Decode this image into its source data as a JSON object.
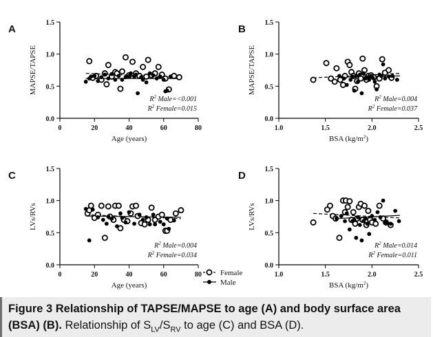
{
  "figure": {
    "legend": [
      {
        "label": "Female",
        "marker": "open-circle",
        "line": "dashed"
      },
      {
        "label": "Male",
        "marker": "filled-circle",
        "line": "solid"
      }
    ]
  },
  "caption": {
    "title": "Figure 3 Relationship of TAPSE/MAPSE to age (A) and body surface area (BSA) (B).",
    "part1": " Relationship of S",
    "sub1": "LV",
    "part2": "/S",
    "sub2": "RV",
    "part3": " to age (C) and BSA (D)."
  },
  "chart_data": [
    {
      "panel": "A",
      "type": "scatter",
      "xlabel": "Age (years)",
      "ylabel": "MAPSE/TAPSE",
      "xlim": [
        0,
        80
      ],
      "ylim": [
        0,
        1.5
      ],
      "xticks": [
        0,
        20,
        40,
        60,
        80
      ],
      "yticks": [
        0.0,
        0.5,
        1.0,
        1.5
      ],
      "annotations": [
        "R² Male=<0.001",
        "R² Female=0.015"
      ],
      "series": [
        {
          "name": "Female",
          "marker": "open",
          "points": [
            [
              17,
              0.89
            ],
            [
              19,
              0.63
            ],
            [
              21,
              0.66
            ],
            [
              24,
              0.6
            ],
            [
              26,
              0.7
            ],
            [
              27,
              0.53
            ],
            [
              28,
              0.83
            ],
            [
              30,
              0.65
            ],
            [
              32,
              0.72
            ],
            [
              33,
              0.7
            ],
            [
              35,
              0.46
            ],
            [
              36,
              0.73
            ],
            [
              38,
              0.95
            ],
            [
              40,
              0.67
            ],
            [
              42,
              0.88
            ],
            [
              44,
              0.7
            ],
            [
              46,
              0.66
            ],
            [
              48,
              0.8
            ],
            [
              50,
              0.65
            ],
            [
              51,
              0.91
            ],
            [
              53,
              0.67
            ],
            [
              55,
              0.7
            ],
            [
              57,
              0.8
            ],
            [
              59,
              0.68
            ],
            [
              61,
              0.62
            ],
            [
              63,
              0.45
            ],
            [
              66,
              0.66
            ],
            [
              69,
              0.64
            ]
          ],
          "fit": [
            [
              15,
              0.7
            ],
            [
              70,
              0.64
            ]
          ]
        },
        {
          "name": "Male",
          "marker": "filled",
          "points": [
            [
              15,
              0.57
            ],
            [
              17,
              0.62
            ],
            [
              18,
              0.65
            ],
            [
              20,
              0.66
            ],
            [
              22,
              0.58
            ],
            [
              24,
              0.64
            ],
            [
              26,
              0.68
            ],
            [
              28,
              0.62
            ],
            [
              30,
              0.69
            ],
            [
              32,
              0.6
            ],
            [
              34,
              0.66
            ],
            [
              36,
              0.6
            ],
            [
              38,
              0.64
            ],
            [
              40,
              0.66
            ],
            [
              41,
              0.7
            ],
            [
              43,
              0.65
            ],
            [
              44,
              0.68
            ],
            [
              45,
              0.39
            ],
            [
              47,
              0.64
            ],
            [
              48,
              0.6
            ],
            [
              50,
              0.56
            ],
            [
              52,
              0.7
            ],
            [
              54,
              0.67
            ],
            [
              56,
              0.62
            ],
            [
              58,
              0.65
            ],
            [
              60,
              0.6
            ],
            [
              61,
              0.42
            ],
            [
              62,
              0.43
            ],
            [
              64,
              0.65
            ]
          ],
          "fit": [
            [
              15,
              0.62
            ],
            [
              70,
              0.62
            ]
          ]
        }
      ]
    },
    {
      "panel": "B",
      "type": "scatter",
      "xlabel": "BSA (kg/m²)",
      "ylabel": "MAPSE/TAPSE",
      "xlim": [
        1.0,
        2.5
      ],
      "ylim": [
        0,
        1.5
      ],
      "xticks": [
        1.0,
        1.5,
        2.0,
        2.5
      ],
      "yticks": [
        0.0,
        0.5,
        1.0,
        1.5
      ],
      "annotations": [
        "R² Male=0.004",
        "R² Female=0.037"
      ],
      "series": [
        {
          "name": "Female",
          "marker": "open",
          "points": [
            [
              1.37,
              0.6
            ],
            [
              1.51,
              0.86
            ],
            [
              1.56,
              0.62
            ],
            [
              1.6,
              0.57
            ],
            [
              1.62,
              0.78
            ],
            [
              1.66,
              0.6
            ],
            [
              1.69,
              0.52
            ],
            [
              1.71,
              0.66
            ],
            [
              1.74,
              0.88
            ],
            [
              1.76,
              0.83
            ],
            [
              1.78,
              0.72
            ],
            [
              1.8,
              0.66
            ],
            [
              1.82,
              0.46
            ],
            [
              1.84,
              0.58
            ],
            [
              1.86,
              0.7
            ],
            [
              1.88,
              0.62
            ],
            [
              1.9,
              0.93
            ],
            [
              1.92,
              0.75
            ],
            [
              1.94,
              0.6
            ],
            [
              1.96,
              0.66
            ],
            [
              1.99,
              0.67
            ],
            [
              2.02,
              0.64
            ],
            [
              2.05,
              0.5
            ],
            [
              2.08,
              0.62
            ],
            [
              2.11,
              0.92
            ],
            [
              2.14,
              0.71
            ],
            [
              2.18,
              0.75
            ],
            [
              2.21,
              0.63
            ]
          ],
          "fit": [
            [
              1.37,
              0.63
            ],
            [
              2.3,
              0.7
            ]
          ]
        },
        {
          "name": "Male",
          "marker": "filled",
          "points": [
            [
              1.65,
              0.66
            ],
            [
              1.7,
              0.62
            ],
            [
              1.73,
              0.52
            ],
            [
              1.77,
              0.6
            ],
            [
              1.79,
              0.65
            ],
            [
              1.81,
              0.43
            ],
            [
              1.83,
              0.66
            ],
            [
              1.85,
              0.57
            ],
            [
              1.87,
              0.68
            ],
            [
              1.89,
              0.39
            ],
            [
              1.91,
              0.7
            ],
            [
              1.93,
              0.62
            ],
            [
              1.95,
              0.64
            ],
            [
              1.97,
              0.6
            ],
            [
              1.99,
              0.66
            ],
            [
              2.01,
              0.63
            ],
            [
              2.03,
              0.57
            ],
            [
              2.05,
              0.45
            ],
            [
              2.08,
              0.68
            ],
            [
              2.1,
              0.66
            ],
            [
              2.12,
              0.84
            ],
            [
              2.14,
              0.62
            ],
            [
              2.18,
              0.65
            ],
            [
              2.22,
              0.66
            ],
            [
              2.27,
              0.6
            ]
          ],
          "fit": [
            [
              1.65,
              0.64
            ],
            [
              2.3,
              0.66
            ]
          ]
        }
      ]
    },
    {
      "panel": "C",
      "type": "scatter",
      "xlabel": "Age (years)",
      "ylabel": "LVs/RVs",
      "xlim": [
        0,
        80
      ],
      "ylim": [
        0,
        1.5
      ],
      "xticks": [
        0,
        20,
        40,
        60,
        80
      ],
      "yticks": [
        0.0,
        0.5,
        1.0,
        1.5
      ],
      "annotations": [
        "R² Male=0.004",
        "R² Female=0.034"
      ],
      "series": [
        {
          "name": "Female",
          "marker": "open",
          "points": [
            [
              16,
              0.8
            ],
            [
              17,
              0.85
            ],
            [
              18,
              0.92
            ],
            [
              20,
              0.73
            ],
            [
              22,
              0.78
            ],
            [
              24,
              0.92
            ],
            [
              26,
              0.42
            ],
            [
              28,
              0.91
            ],
            [
              29,
              0.75
            ],
            [
              31,
              0.7
            ],
            [
              32,
              0.92
            ],
            [
              34,
              0.92
            ],
            [
              35,
              0.57
            ],
            [
              37,
              0.7
            ],
            [
              39,
              0.68
            ],
            [
              41,
              0.8
            ],
            [
              42,
              0.91
            ],
            [
              44,
              0.92
            ],
            [
              45,
              0.76
            ],
            [
              47,
              0.65
            ],
            [
              49,
              0.63
            ],
            [
              51,
              0.7
            ],
            [
              53,
              0.89
            ],
            [
              55,
              0.7
            ],
            [
              57,
              0.75
            ],
            [
              59,
              0.78
            ],
            [
              61,
              0.53
            ],
            [
              62,
              0.53
            ],
            [
              64,
              0.7
            ],
            [
              67,
              0.8
            ],
            [
              70,
              0.85
            ]
          ],
          "fit": [
            [
              15,
              0.78
            ],
            [
              70,
              0.72
            ]
          ]
        },
        {
          "name": "Male",
          "marker": "filled",
          "points": [
            [
              15,
              0.87
            ],
            [
              17,
              0.38
            ],
            [
              19,
              0.86
            ],
            [
              22,
              0.74
            ],
            [
              25,
              0.7
            ],
            [
              27,
              0.64
            ],
            [
              28,
              0.75
            ],
            [
              30,
              0.72
            ],
            [
              33,
              0.6
            ],
            [
              35,
              0.8
            ],
            [
              36,
              0.73
            ],
            [
              38,
              0.66
            ],
            [
              40,
              0.82
            ],
            [
              43,
              0.64
            ],
            [
              46,
              0.78
            ],
            [
              48,
              0.7
            ],
            [
              50,
              0.74
            ],
            [
              52,
              0.63
            ],
            [
              54,
              0.78
            ],
            [
              55,
              0.63
            ],
            [
              58,
              0.67
            ],
            [
              60,
              0.63
            ],
            [
              62,
              0.72
            ],
            [
              63,
              0.56
            ],
            [
              66,
              0.69
            ]
          ],
          "fit": [
            [
              15,
              0.76
            ],
            [
              70,
              0.74
            ]
          ]
        }
      ]
    },
    {
      "panel": "D",
      "type": "scatter",
      "xlabel": "BSA (kg/m²)",
      "ylabel": "LVs/RVs",
      "xlim": [
        1.0,
        2.5
      ],
      "ylim": [
        0,
        1.5
      ],
      "xticks": [
        1.0,
        1.5,
        2.0,
        2.5
      ],
      "yticks": [
        0.0,
        0.5,
        1.0,
        1.5
      ],
      "annotations": [
        "R² Male=0.014",
        "R² Female=0.011"
      ],
      "series": [
        {
          "name": "Female",
          "marker": "open",
          "points": [
            [
              1.37,
              0.66
            ],
            [
              1.52,
              0.86
            ],
            [
              1.55,
              0.92
            ],
            [
              1.58,
              0.76
            ],
            [
              1.61,
              0.72
            ],
            [
              1.65,
              0.42
            ],
            [
              1.69,
              1.0
            ],
            [
              1.71,
              0.82
            ],
            [
              1.72,
              1.0
            ],
            [
              1.74,
              0.9
            ],
            [
              1.76,
              0.99
            ],
            [
              1.78,
              0.7
            ],
            [
              1.8,
              0.82
            ],
            [
              1.82,
              0.64
            ],
            [
              1.84,
              0.72
            ],
            [
              1.86,
              0.9
            ],
            [
              1.88,
              0.95
            ],
            [
              1.9,
              0.7
            ],
            [
              1.92,
              0.92
            ],
            [
              1.94,
              0.62
            ],
            [
              1.96,
              0.84
            ],
            [
              1.98,
              0.7
            ],
            [
              2.0,
              0.66
            ],
            [
              2.04,
              0.64
            ],
            [
              2.08,
              0.92
            ],
            [
              2.12,
              0.72
            ],
            [
              2.15,
              0.66
            ],
            [
              2.2,
              0.62
            ]
          ],
          "fit": [
            [
              1.37,
              0.8
            ],
            [
              2.3,
              0.73
            ]
          ]
        },
        {
          "name": "Male",
          "marker": "filled",
          "points": [
            [
              1.62,
              0.72
            ],
            [
              1.67,
              0.76
            ],
            [
              1.71,
              0.68
            ],
            [
              1.73,
              0.8
            ],
            [
              1.76,
              0.55
            ],
            [
              1.79,
              0.68
            ],
            [
              1.81,
              0.7
            ],
            [
              1.83,
              0.42
            ],
            [
              1.85,
              0.74
            ],
            [
              1.87,
              0.62
            ],
            [
              1.89,
              0.38
            ],
            [
              1.91,
              0.68
            ],
            [
              1.93,
              0.72
            ],
            [
              1.95,
              0.64
            ],
            [
              1.97,
              0.48
            ],
            [
              2.0,
              0.76
            ],
            [
              2.03,
              0.7
            ],
            [
              2.06,
              0.82
            ],
            [
              2.09,
              0.74
            ],
            [
              2.12,
              1.0
            ],
            [
              2.15,
              0.66
            ],
            [
              2.2,
              0.64
            ],
            [
              2.25,
              0.84
            ],
            [
              2.29,
              0.68
            ]
          ],
          "fit": [
            [
              1.62,
              0.72
            ],
            [
              2.3,
              0.77
            ]
          ]
        }
      ]
    }
  ]
}
